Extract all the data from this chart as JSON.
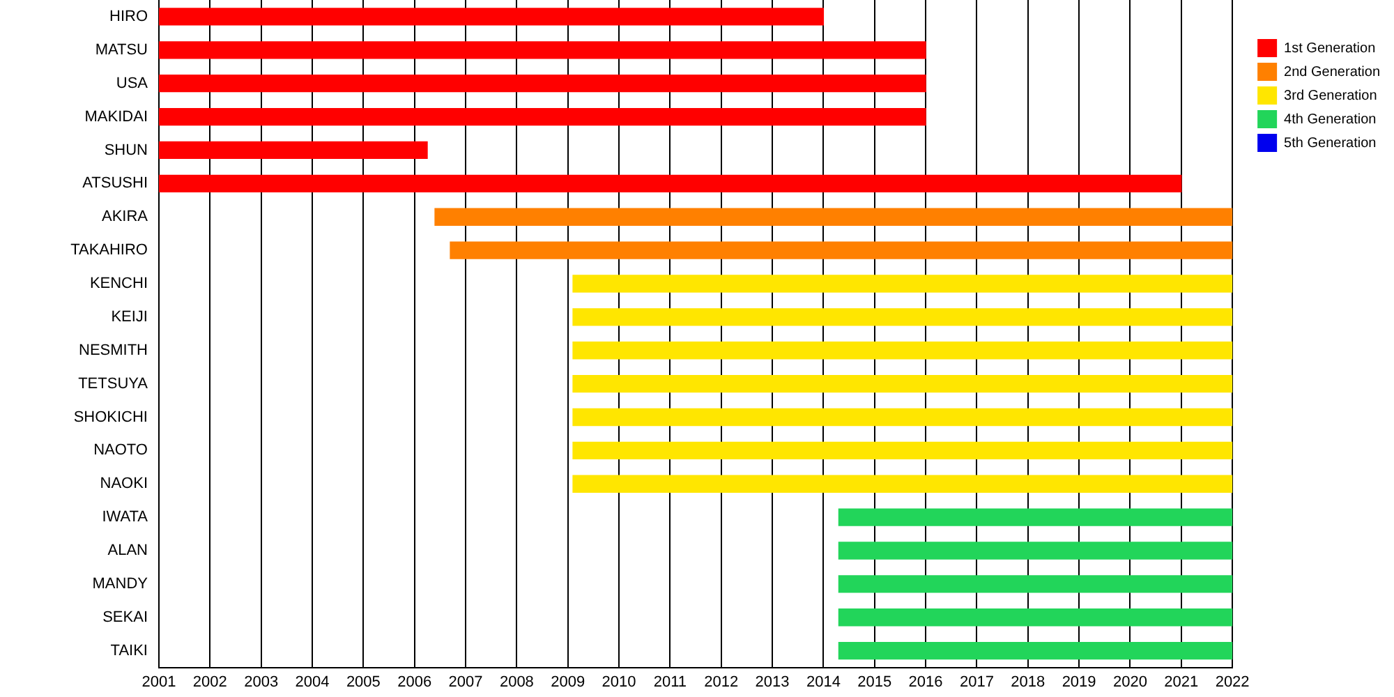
{
  "chart_data": {
    "type": "bar",
    "orientation": "horizontal",
    "categories": [
      "HIRO",
      "MATSU",
      "USA",
      "MAKIDAI",
      "SHUN",
      "ATSUSHI",
      "AKIRA",
      "TAKAHIRO",
      "KENCHI",
      "KEIJI",
      "NESMITH",
      "TETSUYA",
      "SHOKICHI",
      "NAOTO",
      "NAOKI",
      "IWATA",
      "ALAN",
      "MANDY",
      "SEKAI",
      "TAIKI"
    ],
    "series": [
      {
        "name": "1st Generation",
        "color": "#ff0000",
        "base": [
          2001,
          2001,
          2001,
          2001,
          2001,
          2001,
          null,
          null,
          null,
          null,
          null,
          null,
          null,
          null,
          null,
          null,
          null,
          null,
          null,
          null
        ],
        "values": [
          13,
          15,
          15,
          15,
          5.25,
          20,
          null,
          null,
          null,
          null,
          null,
          null,
          null,
          null,
          null,
          null,
          null,
          null,
          null,
          null
        ]
      },
      {
        "name": "2nd Generation",
        "color": "#ff8000",
        "base": [
          null,
          null,
          null,
          null,
          null,
          null,
          2006.4,
          2006.7,
          null,
          null,
          null,
          null,
          null,
          null,
          null,
          null,
          null,
          null,
          null,
          null
        ],
        "values": [
          null,
          null,
          null,
          null,
          null,
          null,
          15.6,
          15.3,
          null,
          null,
          null,
          null,
          null,
          null,
          null,
          null,
          null,
          null,
          null,
          null
        ]
      },
      {
        "name": "3rd Generation",
        "color": "#ffe600",
        "base": [
          null,
          null,
          null,
          null,
          null,
          null,
          null,
          null,
          2009.1,
          2009.1,
          2009.1,
          2009.1,
          2009.1,
          2009.1,
          2009.1,
          null,
          null,
          null,
          null,
          null
        ],
        "values": [
          null,
          null,
          null,
          null,
          null,
          null,
          null,
          null,
          12.9,
          12.9,
          12.9,
          12.9,
          12.9,
          12.9,
          12.9,
          null,
          null,
          null,
          null,
          null
        ]
      },
      {
        "name": "4th Generation",
        "color": "#22d55a",
        "base": [
          null,
          null,
          null,
          null,
          null,
          null,
          null,
          null,
          null,
          null,
          null,
          null,
          null,
          null,
          null,
          2014.3,
          2014.3,
          2014.3,
          2014.3,
          2014.3
        ],
        "values": [
          null,
          null,
          null,
          null,
          null,
          null,
          null,
          null,
          null,
          null,
          null,
          null,
          null,
          null,
          null,
          7.7,
          7.7,
          7.7,
          7.7,
          7.7
        ]
      },
      {
        "name": "5th Generation",
        "color": "#0000ee",
        "values": [
          null,
          null,
          null,
          null,
          null,
          null,
          null,
          null,
          null,
          null,
          null,
          null,
          null,
          null,
          null,
          null,
          null,
          null,
          null,
          null
        ]
      }
    ],
    "xlim": [
      2001,
      2022
    ],
    "xticks": [
      2001,
      2002,
      2003,
      2004,
      2005,
      2006,
      2007,
      2008,
      2009,
      2010,
      2011,
      2012,
      2013,
      2014,
      2015,
      2016,
      2017,
      2018,
      2019,
      2020,
      2021,
      2022
    ],
    "grid": "x",
    "legend": "top right"
  }
}
